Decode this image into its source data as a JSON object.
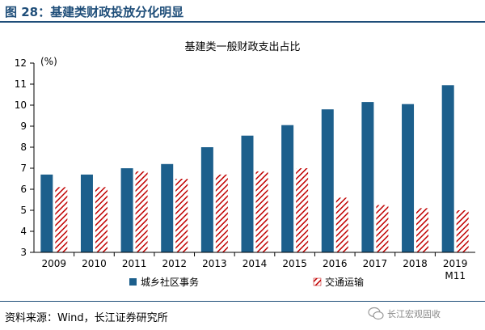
{
  "header": {
    "figure_title": "图 28：基建类财政投放分化明显"
  },
  "footer": {
    "source": "资料来源：Wind，长江证券研究所",
    "watermark": "长江宏观固收"
  },
  "colors": {
    "title": "#1f4e79",
    "series_1": "#1c5f8c",
    "series_2": "#c00000"
  },
  "chart_data": {
    "type": "bar",
    "title": "基建类一般财政支出占比",
    "y_unit": "(%)",
    "ylim": [
      3,
      12
    ],
    "yticks": [
      3,
      4,
      5,
      6,
      7,
      8,
      9,
      10,
      11,
      12
    ],
    "grid": false,
    "legend_position": "bottom",
    "categories": [
      "2009",
      "2010",
      "2011",
      "2012",
      "2013",
      "2014",
      "2015",
      "2016",
      "2017",
      "2018",
      "2019\nM11"
    ],
    "series": [
      {
        "name": "城乡社区事务",
        "pattern": "solid",
        "values": [
          6.7,
          6.7,
          7.0,
          7.2,
          8.0,
          8.55,
          9.05,
          9.8,
          10.15,
          10.05,
          10.95
        ]
      },
      {
        "name": "交通运输",
        "pattern": "hatched",
        "values": [
          6.1,
          6.1,
          6.85,
          6.5,
          6.7,
          6.85,
          7.0,
          5.6,
          5.25,
          5.1,
          5.0
        ]
      }
    ]
  }
}
